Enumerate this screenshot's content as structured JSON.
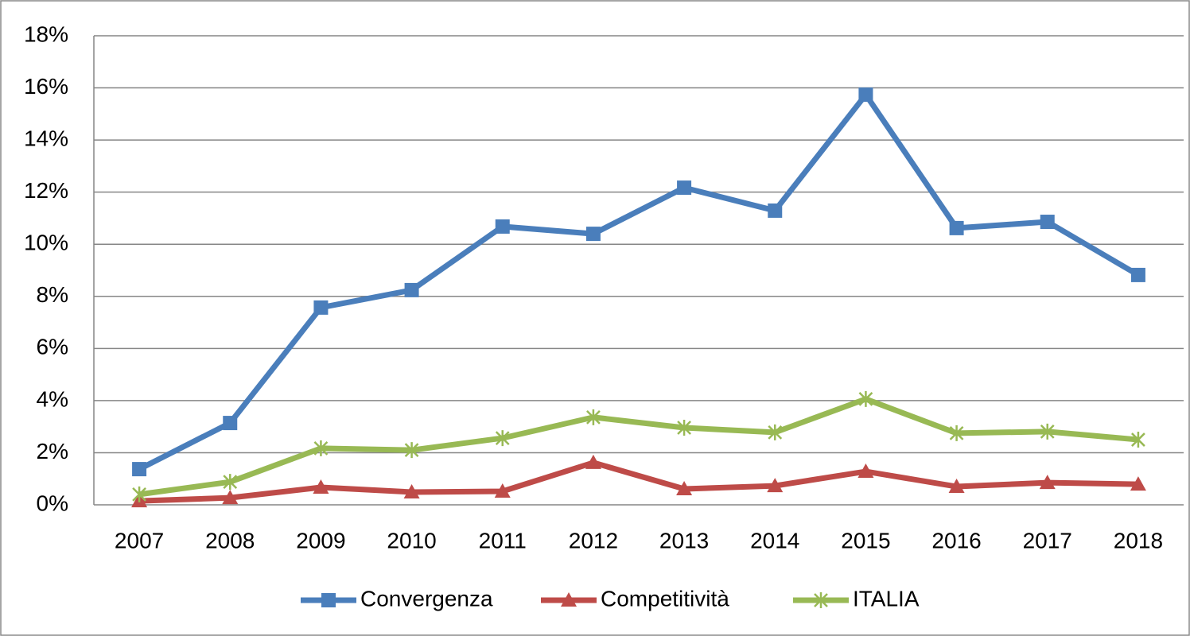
{
  "chart_data": {
    "type": "line",
    "categories": [
      "2007",
      "2008",
      "2009",
      "2010",
      "2011",
      "2012",
      "2013",
      "2014",
      "2015",
      "2016",
      "2017",
      "2018"
    ],
    "series": [
      {
        "name": "Convergenza",
        "color": "#4a7ebb",
        "marker": "square",
        "values": [
          1.37,
          3.14,
          7.57,
          8.24,
          10.68,
          10.4,
          12.17,
          11.29,
          15.74,
          10.62,
          10.86,
          8.82
        ]
      },
      {
        "name": "Competitività",
        "color": "#be4b48",
        "marker": "triangle",
        "values": [
          0.15,
          0.27,
          0.67,
          0.49,
          0.52,
          1.62,
          0.61,
          0.73,
          1.28,
          0.7,
          0.85,
          0.79
        ]
      },
      {
        "name": "ITALIA",
        "color": "#98b954",
        "marker": "star",
        "values": [
          0.4,
          0.88,
          2.17,
          2.1,
          2.56,
          3.36,
          2.96,
          2.78,
          4.06,
          2.75,
          2.81,
          2.5
        ]
      }
    ],
    "ylim": [
      0,
      18
    ],
    "yticks": [
      {
        "value": 0,
        "label": "0%"
      },
      {
        "value": 2,
        "label": "2%"
      },
      {
        "value": 4,
        "label": "4%"
      },
      {
        "value": 6,
        "label": "6%"
      },
      {
        "value": 8,
        "label": "8%"
      },
      {
        "value": 10,
        "label": "10%"
      },
      {
        "value": 12,
        "label": "12%"
      },
      {
        "value": 14,
        "label": "14%"
      },
      {
        "value": 16,
        "label": "16%"
      },
      {
        "value": 18,
        "label": "18%"
      }
    ],
    "grid": true,
    "legend": "bottom"
  }
}
